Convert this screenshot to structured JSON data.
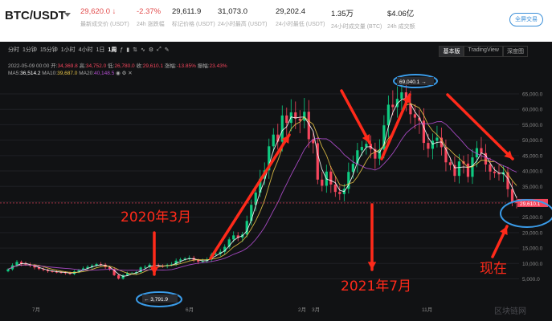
{
  "header": {
    "pair": "BTC/USDT",
    "stats": [
      {
        "value": "29,620.0 ↓",
        "label": "最新成交价 (USDT)",
        "red": true
      },
      {
        "value": "-2.37%",
        "label": "24h 涨跌幅",
        "red": true
      },
      {
        "value": "29,611.9",
        "label": "标记价格 (USDT)",
        "red": false
      },
      {
        "value": "31,073.0",
        "label": "24小时最高 (USDT)",
        "red": false
      },
      {
        "value": "29,202.4",
        "label": "24小时最低 (USDT)",
        "red": false
      },
      {
        "value": "1.35万",
        "label": "24小时成交量 (BTC)",
        "red": false
      },
      {
        "value": "$4.06亿",
        "label": "24h 成交额",
        "red": false
      }
    ],
    "fullscreen_button": "全屏交易"
  },
  "toolbar": {
    "timeframes": [
      "分时",
      "1分钟",
      "15分钟",
      "1小时",
      "4小时",
      "1日",
      "1周"
    ],
    "active_timeframe": "1周",
    "view_tabs": [
      "基本版",
      "TradingView",
      "深度图"
    ],
    "active_view": "基本版"
  },
  "ohlc": {
    "date": "2022-05-09 00:00",
    "open_label": "开:",
    "open": "34,369.8",
    "high_label": "高:",
    "high": "34,752.0",
    "low_label": "低:",
    "low": "26,780.0",
    "close_label": "收:",
    "close": "29,610.1",
    "change_label": "涨幅:",
    "change": "-13.85%",
    "amp_label": "振幅:",
    "amp": "23.43%"
  },
  "ma": {
    "ma5_label": "MA5:",
    "ma5": "36,514.2",
    "ma10_label": "MA10:",
    "ma10": "39,687.0",
    "ma20_label": "MA20:",
    "ma20": "40,148.5"
  },
  "chart_data": {
    "type": "candlestick",
    "y_ticks": [
      "65,000.0",
      "60,000.0",
      "55,000.0",
      "50,000.0",
      "45,000.0",
      "40,000.0",
      "35,000.0",
      "30,000.0",
      "25,000.0",
      "20,000.0",
      "15,000.0",
      "10,000.0",
      "5,000.0"
    ],
    "x_ticks": [
      "7月",
      "6月",
      "2月",
      "3月",
      "11月"
    ],
    "ylim": [
      2500,
      72000
    ],
    "high_marker": "69,040.1 →",
    "low_marker": "← 3,791.9",
    "price_tag": "29,610.1",
    "closes": [
      8100,
      9400,
      10500,
      9900,
      9700,
      9300,
      8700,
      8200,
      7900,
      7500,
      7300,
      7200,
      7100,
      6900,
      6600,
      7400,
      7800,
      8400,
      8900,
      9300,
      9800,
      9600,
      8800,
      8200,
      6200,
      5100,
      6200,
      6800,
      6800,
      7200,
      8700,
      8900,
      9600,
      9300,
      9200,
      9100,
      9500,
      9700,
      10900,
      11300,
      11600,
      11800,
      11100,
      10600,
      10800,
      11300,
      12900,
      13100,
      13800,
      15400,
      17800,
      19100,
      18400,
      19400,
      23800,
      29000,
      33000,
      37500,
      40200,
      48000,
      51800,
      49500,
      58000,
      55600,
      59000,
      57000,
      56300,
      59200,
      50300,
      49000,
      37200,
      35200,
      39800,
      35600,
      33200,
      32500,
      34200,
      39700,
      42300,
      46700,
      47800,
      48800,
      47100,
      44000,
      46900,
      54800,
      61500,
      60700,
      63400,
      65500,
      61800,
      58400,
      57300,
      56300,
      49100,
      47200,
      49800,
      50800,
      47700,
      42800,
      41900,
      38400,
      43100,
      42400,
      38100,
      44400,
      47400,
      45800,
      42100,
      39800,
      39300,
      38900,
      39600,
      34100,
      30000,
      29610
    ],
    "annotations": {
      "left": "2020年3月",
      "middle": "2021年7月",
      "right": "现在"
    },
    "watermark": "区块链网"
  },
  "colors": {
    "up": "#0ecb81",
    "down": "#f6465d",
    "annotation": "#ff2a1a",
    "circle": "#3a9be8",
    "ma5": "#ffffff",
    "ma10": "#e8c547",
    "ma20": "#b44fd1"
  }
}
